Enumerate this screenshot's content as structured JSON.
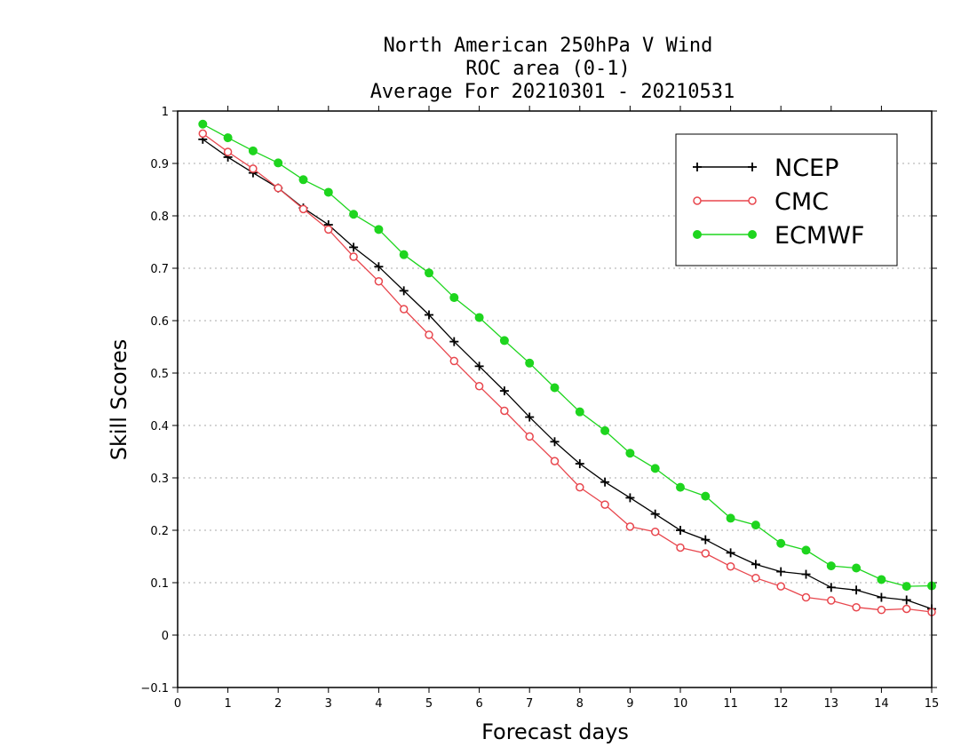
{
  "chart_data": {
    "type": "line",
    "title_lines": [
      "North American 250hPa V Wind",
      "ROC area (0-1)",
      "Average For 20210301 - 20210531"
    ],
    "xlabel": "Forecast days",
    "ylabel": "Skill Scores",
    "xlim": [
      0,
      15
    ],
    "ylim": [
      -0.1,
      1
    ],
    "xticks": [
      "0",
      "1",
      "2",
      "3",
      "4",
      "5",
      "6",
      "7",
      "8",
      "9",
      "10",
      "11",
      "12",
      "13",
      "14",
      "15"
    ],
    "yticks": [
      "−0.1",
      "0",
      "0.1",
      "0.2",
      "0.3",
      "0.4",
      "0.5",
      "0.6",
      "0.7",
      "0.8",
      "0.9",
      "1"
    ],
    "ytick_values": [
      -0.1,
      0,
      0.1,
      0.2,
      0.3,
      0.4,
      0.5,
      0.6,
      0.7,
      0.8,
      0.9,
      1
    ],
    "grid": "horizontal dotted",
    "legend_position": "top-right",
    "x": [
      0.5,
      1,
      1.5,
      2,
      2.5,
      3,
      3.5,
      4,
      4.5,
      5,
      5.5,
      6,
      6.5,
      7,
      7.5,
      8,
      8.5,
      9,
      9.5,
      10,
      10.5,
      11,
      11.5,
      12,
      12.5,
      13,
      13.5,
      14,
      14.5,
      15
    ],
    "series": [
      {
        "name": "NCEP",
        "color": "#000000",
        "marker": "plus",
        "values": [
          0.946,
          0.912,
          0.882,
          0.853,
          0.815,
          0.783,
          0.74,
          0.703,
          0.657,
          0.611,
          0.56,
          0.513,
          0.466,
          0.416,
          0.369,
          0.327,
          0.292,
          0.262,
          0.231,
          0.2,
          0.182,
          0.157,
          0.135,
          0.121,
          0.116,
          0.091,
          0.086,
          0.072,
          0.067,
          0.05
        ]
      },
      {
        "name": "CMC",
        "color": "#e8474e",
        "marker": "open-circle",
        "values": [
          0.957,
          0.922,
          0.89,
          0.853,
          0.813,
          0.774,
          0.722,
          0.675,
          0.622,
          0.573,
          0.523,
          0.475,
          0.428,
          0.379,
          0.332,
          0.282,
          0.249,
          0.207,
          0.197,
          0.167,
          0.156,
          0.131,
          0.109,
          0.093,
          0.072,
          0.066,
          0.053,
          0.048,
          0.05,
          0.044
        ]
      },
      {
        "name": "ECMWF",
        "color": "#1ed51e",
        "marker": "filled-circle",
        "values": [
          0.975,
          0.949,
          0.924,
          0.901,
          0.869,
          0.845,
          0.803,
          0.774,
          0.726,
          0.691,
          0.644,
          0.606,
          0.562,
          0.519,
          0.472,
          0.426,
          0.39,
          0.347,
          0.318,
          0.282,
          0.265,
          0.223,
          0.21,
          0.175,
          0.162,
          0.132,
          0.128,
          0.106,
          0.093,
          0.094
        ]
      }
    ]
  }
}
